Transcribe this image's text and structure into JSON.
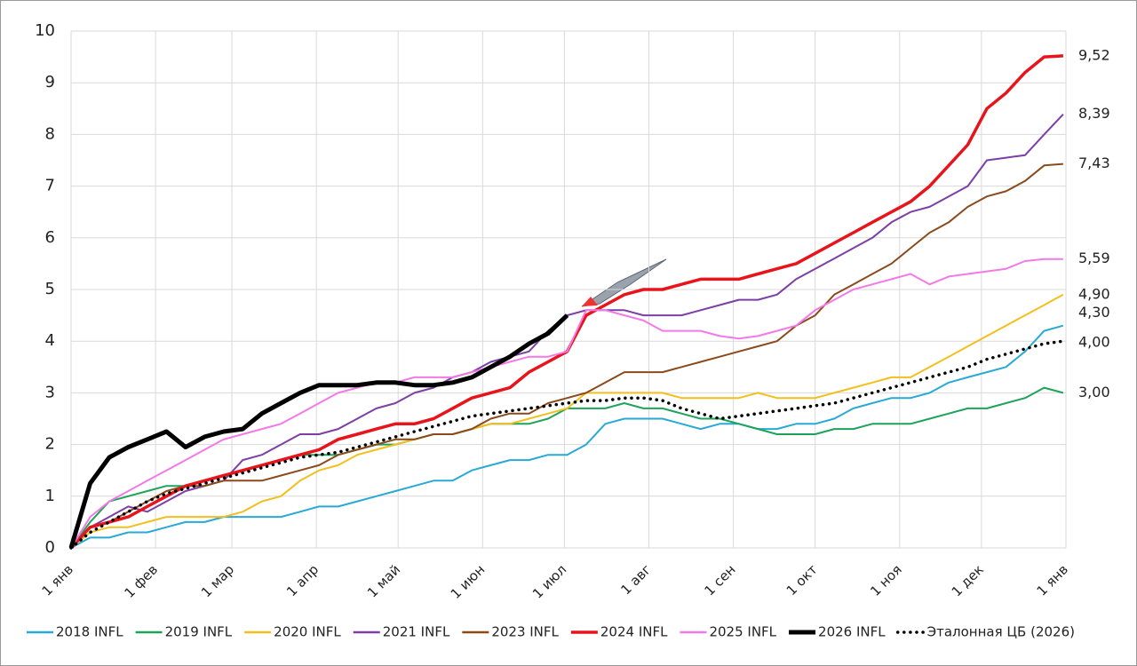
{
  "chart_data": {
    "type": "line",
    "x": [
      0,
      7,
      14,
      21,
      28,
      35,
      42,
      49,
      56,
      63,
      70,
      77,
      84,
      91,
      98,
      105,
      112,
      119,
      126,
      133,
      140,
      147,
      154,
      161,
      168,
      175,
      182,
      189,
      196,
      203,
      210,
      217,
      224,
      231,
      238,
      245,
      252,
      259,
      266,
      273,
      280,
      287,
      294,
      301,
      308,
      315,
      322,
      329,
      336,
      343,
      350,
      357,
      364
    ],
    "xlim": [
      0,
      365
    ],
    "xticks": [
      {
        "value": 0,
        "label": "1 янв"
      },
      {
        "value": 31,
        "label": "1 фев"
      },
      {
        "value": 59,
        "label": "1 мар"
      },
      {
        "value": 90,
        "label": "1 апр"
      },
      {
        "value": 120,
        "label": "1 май"
      },
      {
        "value": 151,
        "label": "1 июн"
      },
      {
        "value": 181,
        "label": "1 июл"
      },
      {
        "value": 212,
        "label": "1 авг"
      },
      {
        "value": 243,
        "label": "1 сен"
      },
      {
        "value": 273,
        "label": "1 окт"
      },
      {
        "value": 304,
        "label": "1 ноя"
      },
      {
        "value": 334,
        "label": "1 дек"
      },
      {
        "value": 365,
        "label": "1 янв"
      }
    ],
    "ylim": [
      0,
      10
    ],
    "yticks": [
      0,
      1,
      2,
      3,
      4,
      5,
      6,
      7,
      8,
      9,
      10
    ],
    "grid": true,
    "legend": "bottom",
    "series": [
      {
        "name": "2018 INFL",
        "color": "#29a9d6",
        "end_label": "4,30",
        "values": [
          0,
          0.2,
          0.2,
          0.3,
          0.3,
          0.4,
          0.5,
          0.5,
          0.6,
          0.6,
          0.6,
          0.6,
          0.7,
          0.8,
          0.8,
          0.9,
          1.0,
          1.1,
          1.2,
          1.3,
          1.3,
          1.5,
          1.6,
          1.7,
          1.7,
          1.8,
          1.8,
          2.0,
          2.4,
          2.5,
          2.5,
          2.5,
          2.4,
          2.3,
          2.4,
          2.4,
          2.3,
          2.3,
          2.4,
          2.4,
          2.5,
          2.7,
          2.8,
          2.9,
          2.9,
          3.0,
          3.2,
          3.3,
          3.4,
          3.5,
          3.8,
          4.2,
          4.3
        ]
      },
      {
        "name": "2019 INFL",
        "color": "#1fa35a",
        "end_label": "3,00",
        "values": [
          0,
          0.5,
          0.9,
          1.0,
          1.1,
          1.2,
          1.2,
          1.3,
          1.4,
          1.5,
          1.6,
          1.7,
          1.8,
          1.8,
          1.8,
          1.9,
          2.0,
          2.0,
          2.1,
          2.2,
          2.2,
          2.3,
          2.4,
          2.4,
          2.4,
          2.5,
          2.7,
          2.7,
          2.7,
          2.8,
          2.7,
          2.7,
          2.6,
          2.5,
          2.5,
          2.4,
          2.3,
          2.2,
          2.2,
          2.2,
          2.3,
          2.3,
          2.4,
          2.4,
          2.4,
          2.5,
          2.6,
          2.7,
          2.7,
          2.8,
          2.9,
          3.1,
          3.0
        ]
      },
      {
        "name": "2020 INFL",
        "color": "#f2bf1d",
        "end_label": "4,90",
        "values": [
          0,
          0.3,
          0.4,
          0.4,
          0.5,
          0.6,
          0.6,
          0.6,
          0.6,
          0.7,
          0.9,
          1.0,
          1.3,
          1.5,
          1.6,
          1.8,
          1.9,
          2.0,
          2.1,
          2.2,
          2.2,
          2.3,
          2.4,
          2.4,
          2.5,
          2.6,
          2.7,
          3.0,
          3.0,
          3.0,
          3.0,
          3.0,
          2.9,
          2.9,
          2.9,
          2.9,
          3.0,
          2.9,
          2.9,
          2.9,
          3.0,
          3.1,
          3.2,
          3.3,
          3.3,
          3.5,
          3.7,
          3.9,
          4.1,
          4.3,
          4.5,
          4.7,
          4.9
        ]
      },
      {
        "name": "2021 INFL",
        "color": "#7b3fa6",
        "end_label": "8,39",
        "values": [
          0,
          0.4,
          0.6,
          0.8,
          0.7,
          0.9,
          1.1,
          1.2,
          1.3,
          1.7,
          1.8,
          2.0,
          2.2,
          2.2,
          2.3,
          2.5,
          2.7,
          2.8,
          3.0,
          3.1,
          3.3,
          3.4,
          3.6,
          3.7,
          3.8,
          4.2,
          4.5,
          4.6,
          4.6,
          4.6,
          4.5,
          4.5,
          4.5,
          4.6,
          4.7,
          4.8,
          4.8,
          4.9,
          5.2,
          5.4,
          5.6,
          5.8,
          6.0,
          6.3,
          6.5,
          6.6,
          6.8,
          7.0,
          7.5,
          7.55,
          7.6,
          8.0,
          8.39
        ]
      },
      {
        "name": "2023 INFL",
        "color": "#8b4a1c",
        "end_label": "7,43",
        "values": [
          0,
          0.4,
          0.5,
          0.7,
          0.9,
          1.1,
          1.2,
          1.2,
          1.3,
          1.3,
          1.3,
          1.4,
          1.5,
          1.6,
          1.8,
          1.9,
          2.0,
          2.1,
          2.1,
          2.2,
          2.2,
          2.3,
          2.5,
          2.6,
          2.6,
          2.8,
          2.9,
          3.0,
          3.2,
          3.4,
          3.4,
          3.4,
          3.5,
          3.6,
          3.7,
          3.8,
          3.9,
          4.0,
          4.3,
          4.5,
          4.9,
          5.1,
          5.3,
          5.5,
          5.8,
          6.1,
          6.3,
          6.6,
          6.8,
          6.9,
          7.1,
          7.4,
          7.43
        ]
      },
      {
        "name": "2024 INFL",
        "color": "#e8141b",
        "end_label": "9,52",
        "values": [
          0,
          0.4,
          0.5,
          0.6,
          0.8,
          1.0,
          1.2,
          1.3,
          1.4,
          1.5,
          1.6,
          1.7,
          1.8,
          1.9,
          2.1,
          2.2,
          2.3,
          2.4,
          2.4,
          2.5,
          2.7,
          2.9,
          3.0,
          3.1,
          3.4,
          3.6,
          3.8,
          4.5,
          4.7,
          4.9,
          5.0,
          5.0,
          5.1,
          5.2,
          5.2,
          5.2,
          5.3,
          5.4,
          5.5,
          5.7,
          5.9,
          6.1,
          6.3,
          6.5,
          6.7,
          7.0,
          7.4,
          7.8,
          8.5,
          8.8,
          9.2,
          9.5,
          9.52
        ]
      },
      {
        "name": "2025 INFL",
        "color": "#f27ae6",
        "end_label": "5,59",
        "values": [
          0,
          0.6,
          0.9,
          1.1,
          1.3,
          1.5,
          1.7,
          1.9,
          2.1,
          2.2,
          2.3,
          2.4,
          2.6,
          2.8,
          3.0,
          3.1,
          3.2,
          3.2,
          3.3,
          3.3,
          3.3,
          3.4,
          3.5,
          3.6,
          3.7,
          3.7,
          3.8,
          4.6,
          4.6,
          4.5,
          4.4,
          4.2,
          4.2,
          4.2,
          4.1,
          4.05,
          4.1,
          4.2,
          4.3,
          4.6,
          4.8,
          5.0,
          5.1,
          5.2,
          5.3,
          5.1,
          5.25,
          5.3,
          5.35,
          5.4,
          5.55,
          5.59,
          5.59
        ]
      },
      {
        "name": "2026 INFL",
        "color": "#000000",
        "values": [
          0,
          1.25,
          1.75,
          1.95,
          2.1,
          2.25,
          1.95,
          2.15,
          2.25,
          2.3,
          2.6,
          2.8,
          3.0,
          3.15,
          3.15,
          3.15,
          3.2,
          3.2,
          3.15,
          3.15,
          3.2,
          3.3,
          3.5,
          3.7,
          3.95,
          4.15,
          4.5,
          null,
          null,
          null,
          null,
          null,
          null,
          null,
          null,
          null,
          null,
          null,
          null,
          null,
          null,
          null,
          null,
          null,
          null,
          null,
          null,
          null,
          null,
          null,
          null,
          null,
          null
        ]
      },
      {
        "name": "Эталонная ЦБ (2026)",
        "color": "#000000",
        "style": "dotted",
        "end_label": "4,00",
        "values": [
          0,
          0.3,
          0.5,
          0.7,
          0.9,
          1.05,
          1.15,
          1.25,
          1.35,
          1.45,
          1.55,
          1.65,
          1.75,
          1.8,
          1.85,
          1.95,
          2.05,
          2.15,
          2.25,
          2.35,
          2.45,
          2.55,
          2.6,
          2.65,
          2.7,
          2.75,
          2.8,
          2.85,
          2.85,
          2.9,
          2.9,
          2.85,
          2.7,
          2.6,
          2.5,
          2.55,
          2.6,
          2.65,
          2.7,
          2.75,
          2.8,
          2.9,
          3.0,
          3.1,
          3.2,
          3.3,
          3.4,
          3.5,
          3.65,
          3.75,
          3.85,
          3.95,
          4.0
        ]
      }
    ]
  }
}
